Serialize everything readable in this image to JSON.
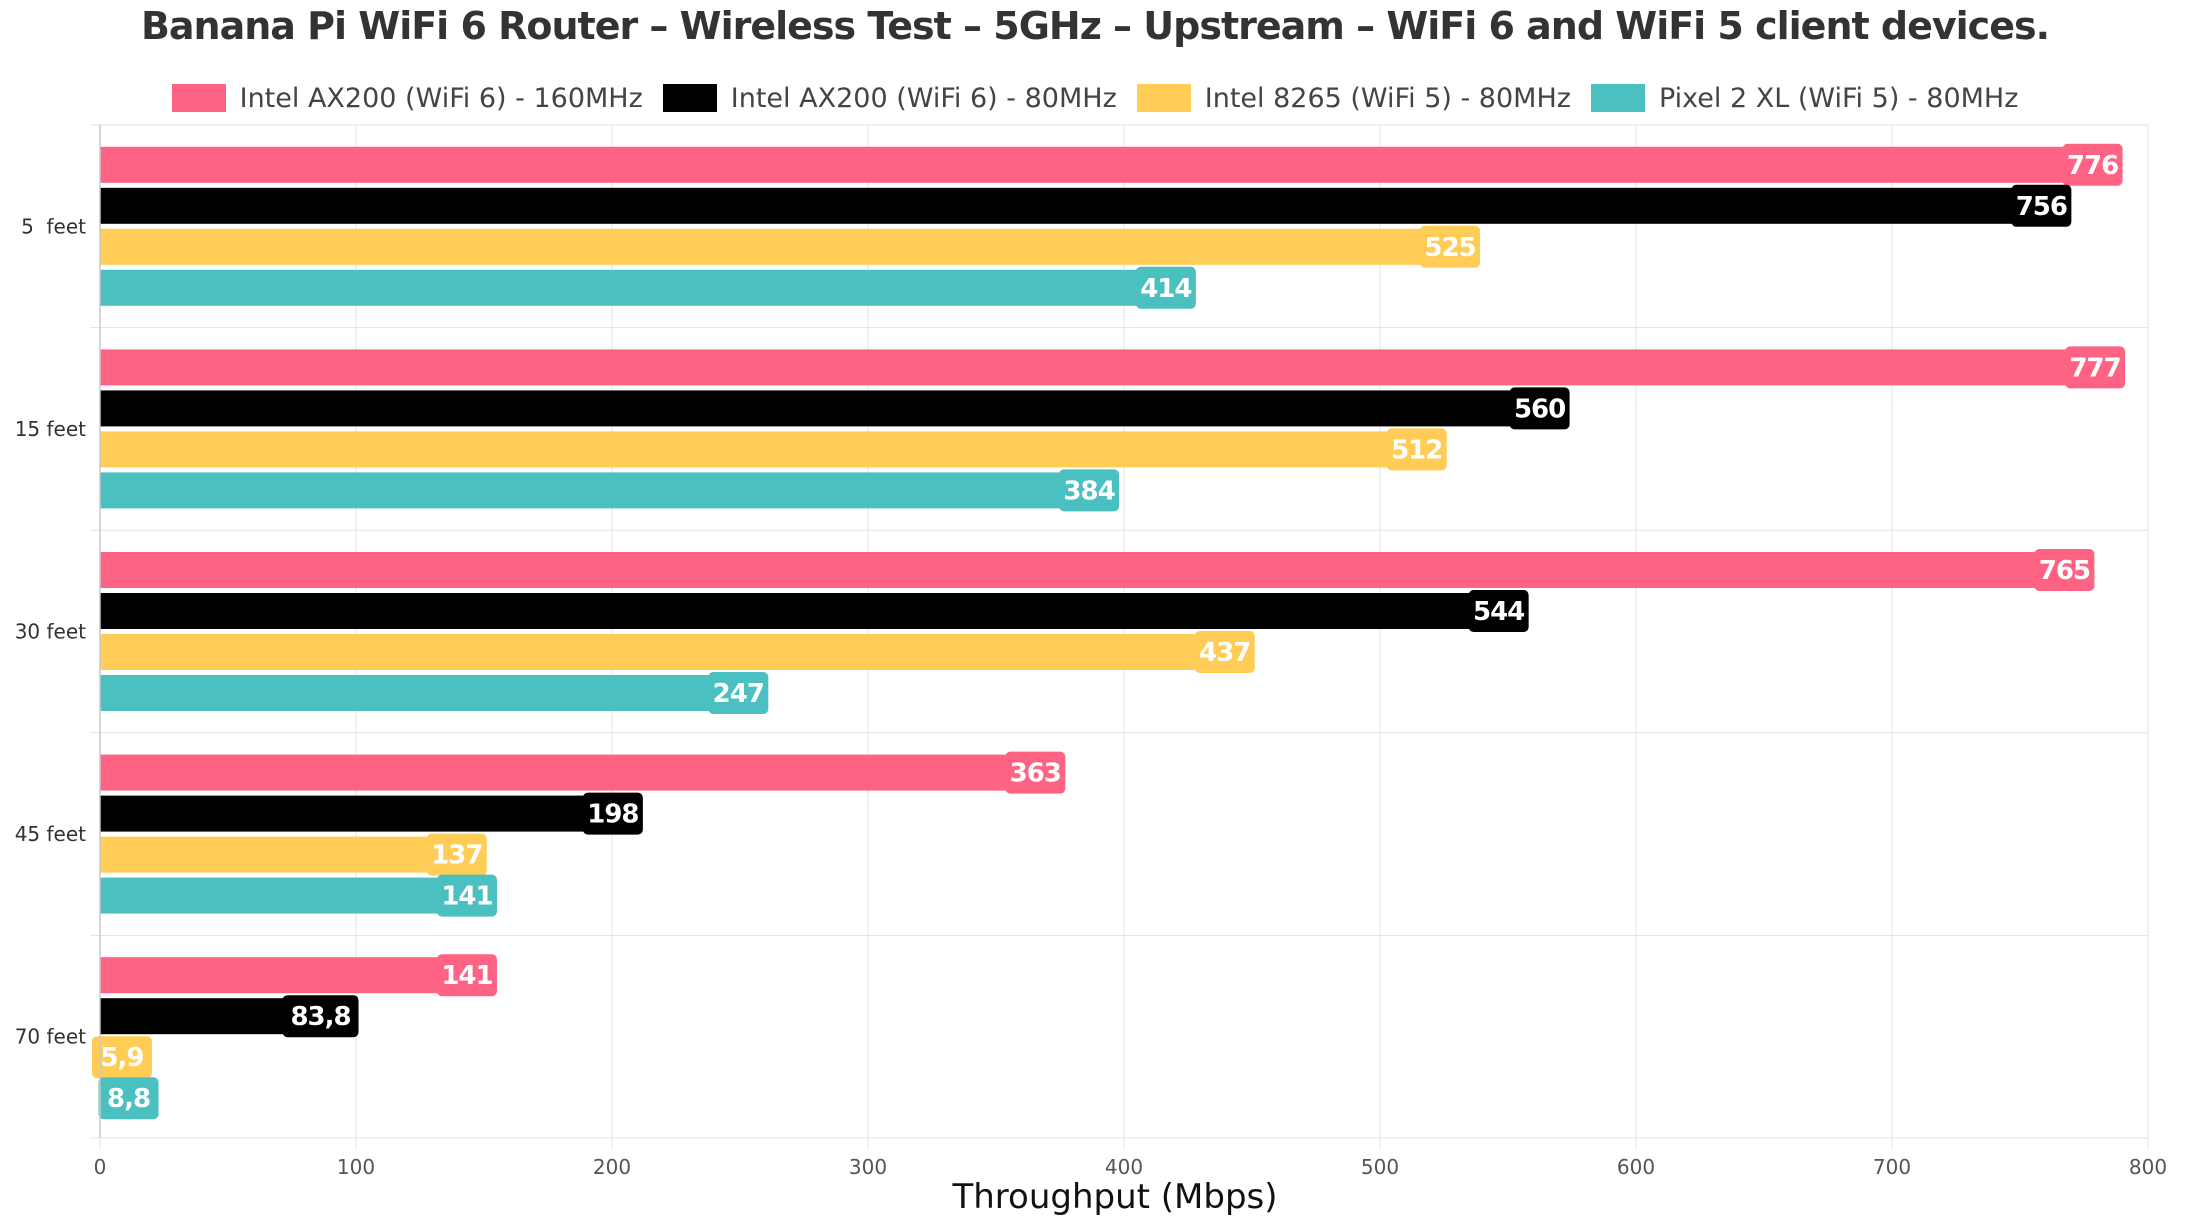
{
  "chart_data": {
    "type": "bar",
    "orientation": "horizontal",
    "title": "Banana Pi WiFi 6 Router – Wireless Test – 5GHz – Upstream – WiFi 6 and WiFi 5 client devices.",
    "xlabel": "Throughput (Mbps)",
    "ylabel": "",
    "xlim": [
      0,
      800
    ],
    "xticks": [
      0,
      100,
      200,
      300,
      400,
      500,
      600,
      700,
      800
    ],
    "grid": true,
    "legend_position": "top",
    "categories": [
      "5  feet",
      "15 feet",
      "30 feet",
      "45 feet",
      "70 feet"
    ],
    "series": [
      {
        "name": "Intel AX200 (WiFi 6) - 160MHz",
        "color": "#ff6384",
        "values": [
          776,
          777,
          765,
          363,
          141
        ],
        "labels": [
          "776",
          "777",
          "765",
          "363",
          "141"
        ]
      },
      {
        "name": "Intel AX200 (WiFi 6) - 80MHz",
        "color": "#000000",
        "values": [
          756,
          560,
          544,
          198,
          83.8
        ],
        "labels": [
          "756",
          "560",
          "544",
          "198",
          "83,8"
        ]
      },
      {
        "name": "Intel 8265 (WiFi 5) - 80MHz",
        "color": "#ffcd56",
        "values": [
          525,
          512,
          437,
          137,
          5.9
        ],
        "labels": [
          "525",
          "512",
          "437",
          "137",
          "5,9"
        ]
      },
      {
        "name": "Pixel 2 XL (WiFi 5) - 80MHz",
        "color": "#4bc0c0",
        "values": [
          414,
          384,
          247,
          141,
          8.8
        ],
        "labels": [
          "414",
          "384",
          "247",
          "141",
          "8,8"
        ]
      }
    ]
  }
}
